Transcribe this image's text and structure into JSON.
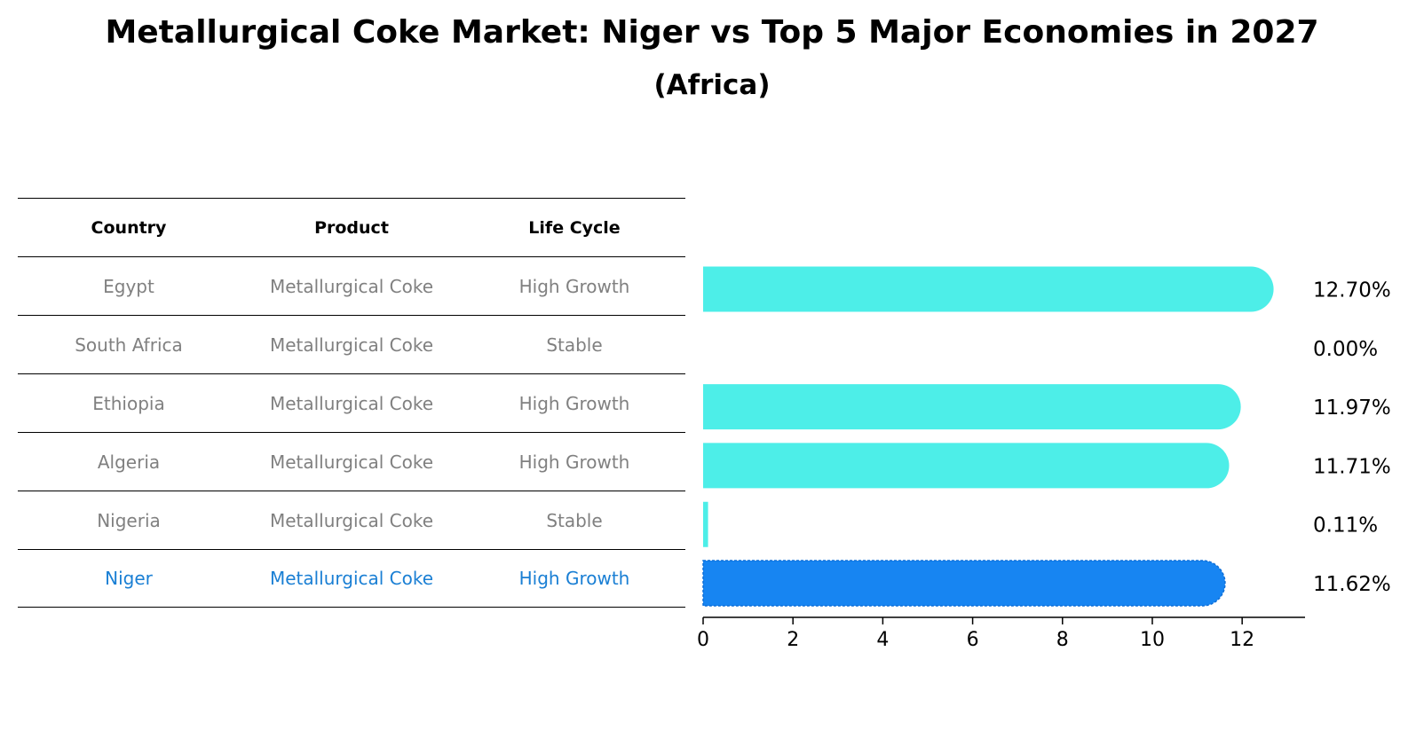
{
  "title": "Metallurgical Coke Market: Niger vs Top 5 Major Economies in 2027",
  "subtitle": "(Africa)",
  "colors": {
    "bar": "#4deee8",
    "highlight_bar": "#1785f2",
    "table_text": "#808080",
    "highlight_text": "#1a7fd4"
  },
  "table": {
    "headers": [
      "Country",
      "Product",
      "Life Cycle"
    ],
    "rows": [
      {
        "country": "Egypt",
        "product": "Metallurgical Coke",
        "life_cycle": "High Growth"
      },
      {
        "country": "South Africa",
        "product": "Metallurgical Coke",
        "life_cycle": "Stable"
      },
      {
        "country": "Ethiopia",
        "product": "Metallurgical Coke",
        "life_cycle": "High Growth"
      },
      {
        "country": "Algeria",
        "product": "Metallurgical Coke",
        "life_cycle": "High Growth"
      },
      {
        "country": "Nigeria",
        "product": "Metallurgical Coke",
        "life_cycle": "Stable"
      },
      {
        "country": "Niger",
        "product": "Metallurgical Coke",
        "life_cycle": "High Growth"
      }
    ]
  },
  "chart_data": {
    "type": "bar",
    "orientation": "horizontal",
    "categories": [
      "Egypt",
      "South Africa",
      "Ethiopia",
      "Algeria",
      "Nigeria",
      "Niger"
    ],
    "values": [
      12.7,
      0.0,
      11.97,
      11.71,
      0.11,
      11.62
    ],
    "value_labels": [
      "12.70%",
      "0.00%",
      "11.97%",
      "11.71%",
      "0.11%",
      "11.62%"
    ],
    "highlight": "Niger",
    "xlim": [
      0,
      13.4
    ],
    "xticks": [
      0,
      2,
      4,
      6,
      8,
      10,
      12
    ],
    "xtick_labels": [
      "0",
      "2",
      "4",
      "6",
      "8",
      "10",
      "12"
    ],
    "title": "Metallurgical Coke Market: Niger vs Top 5 Major Economies in 2027",
    "subtitle": "(Africa)",
    "xlabel": "",
    "ylabel": "",
    "grid": false,
    "legend": "none"
  }
}
